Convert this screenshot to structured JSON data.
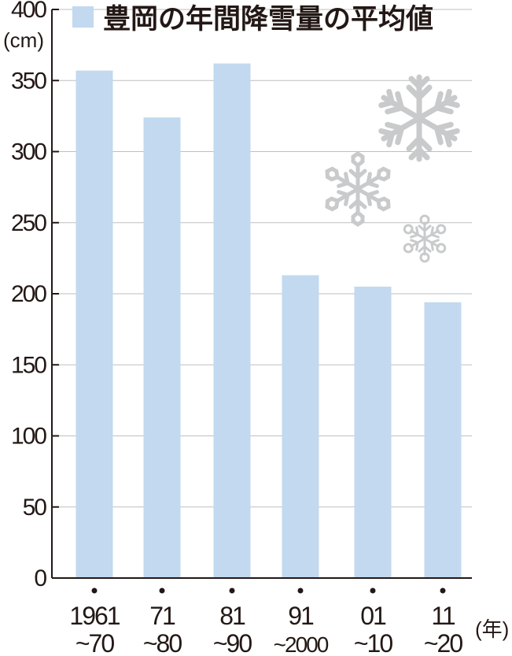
{
  "chart_data": {
    "type": "bar",
    "title": "豊岡の年間降雪量の平均値",
    "ylabel": "(cm)",
    "xlabel": "(年)",
    "ylim": [
      0,
      400
    ],
    "y_ticks": [
      0,
      50,
      100,
      150,
      200,
      250,
      300,
      350,
      400
    ],
    "grid": true,
    "legend": "top-left",
    "colors": {
      "bar": "#c2d9ef",
      "text": "#231815",
      "grid": "#bfbfbf",
      "snowflake": "#c9cacb"
    },
    "categories": [
      {
        "line1": "1961",
        "line2": "~70"
      },
      {
        "line1": "71",
        "line2": "~80"
      },
      {
        "line1": "81",
        "line2": "~90"
      },
      {
        "line1": "91",
        "line2": "~2000"
      },
      {
        "line1": "01",
        "line2": "~10"
      },
      {
        "line1": "11",
        "line2": "~20"
      }
    ],
    "series": [
      {
        "name": "豊岡の年間降雪量の平均値",
        "values": [
          357,
          324,
          362,
          213,
          205,
          194
        ]
      }
    ]
  },
  "decorations": {
    "icons": [
      "snowflake-icon",
      "snowflake-icon",
      "snowflake-icon"
    ]
  }
}
